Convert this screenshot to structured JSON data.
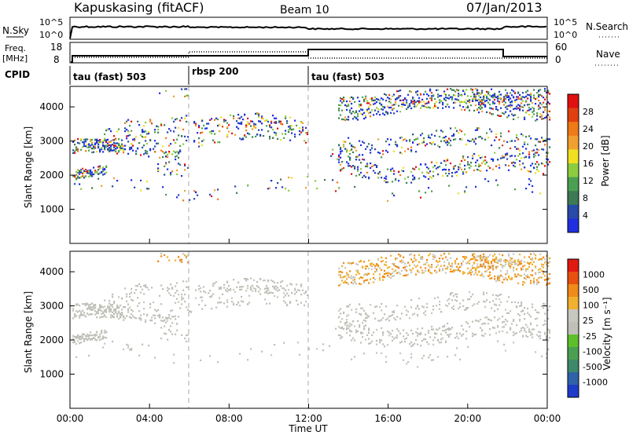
{
  "header": {
    "station": "Kapuskasing (fitACF)",
    "beam": "Beam 10",
    "date": "07/Jan/2013"
  },
  "panels": {
    "nsky": {
      "label": "N.Sky",
      "tick_top": "10^5",
      "tick_bottom": "10^0",
      "right_label": "N.Search"
    },
    "freq": {
      "label": "Freq.",
      "unit": "[MHz]",
      "left_ticks": [
        "18",
        "8"
      ],
      "right_ticks": [
        "60",
        "0"
      ],
      "right_label": "Nave"
    },
    "cpid": {
      "label": "CPID",
      "segments": [
        "tau (fast) 503",
        "rbsp 200",
        "tau (fast) 503"
      ]
    }
  },
  "chart_data": [
    {
      "type": "heatmap",
      "name": "power",
      "ylabel": "Slant Range [km]",
      "yticks": [
        "1000",
        "2000",
        "3000",
        "4000"
      ],
      "ylim": [
        0,
        4600
      ],
      "colorbar_label": "Power [dB]",
      "colorbar_ticks": [
        "28",
        "24",
        "20",
        "16",
        "12",
        "8",
        "4"
      ],
      "colors": [
        "#2030e0",
        "#284aa8",
        "#3d7a55",
        "#4aa050",
        "#8ccd40",
        "#f0e020",
        "#f0a030",
        "#ee7a18",
        "#e04010",
        "#e01010"
      ]
    },
    {
      "type": "heatmap",
      "name": "velocity",
      "ylabel": "Slant Range [km]",
      "yticks": [
        "1000",
        "2000",
        "3000",
        "4000"
      ],
      "ylim": [
        0,
        4600
      ],
      "colorbar_label": "Velocity [m s⁻¹]",
      "colorbar_ticks": [
        "1000",
        "500",
        "100",
        "25",
        "-25",
        "-100",
        "-500",
        "-1000"
      ],
      "colors": [
        "#1e3cc8",
        "#2f62a8",
        "#3c8a6a",
        "#4aa050",
        "#5cc02a",
        "#c0c0b8",
        "#c8c8c0",
        "#f0b030",
        "#f08a18",
        "#e85010",
        "#e01a10"
      ]
    }
  ],
  "xaxis": {
    "label": "Time UT",
    "ticks": [
      "00:00",
      "04:00",
      "08:00",
      "12:00",
      "16:00",
      "20:00",
      "00:00"
    ]
  }
}
